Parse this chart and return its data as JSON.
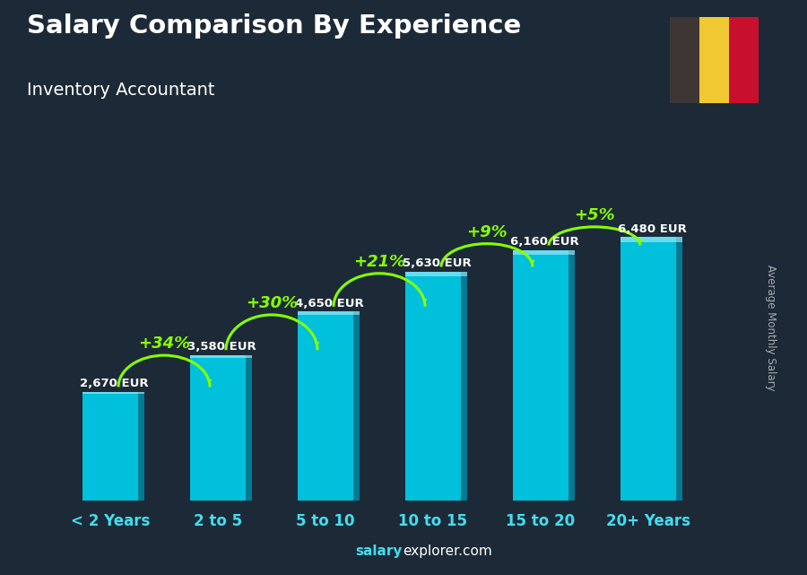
{
  "categories": [
    "< 2 Years",
    "2 to 5",
    "5 to 10",
    "10 to 15",
    "15 to 20",
    "20+ Years"
  ],
  "values": [
    2670,
    3580,
    4650,
    5630,
    6160,
    6480
  ],
  "labels": [
    "2,670 EUR",
    "3,580 EUR",
    "4,650 EUR",
    "5,630 EUR",
    "6,160 EUR",
    "6,480 EUR"
  ],
  "pct_changes": [
    "+34%",
    "+30%",
    "+21%",
    "+9%",
    "+5%"
  ],
  "bar_color_face": "#00C0DC",
  "bar_color_right": "#007A92",
  "bar_color_top": "#80E8FF",
  "title": "Salary Comparison By Experience",
  "subtitle": "Inventory Accountant",
  "ylabel": "Average Monthly Salary",
  "watermark_bold": "salary",
  "watermark_regular": "explorer.com",
  "title_color": "#FFFFFF",
  "label_color": "#FFFFFF",
  "pct_color": "#88FF00",
  "xtick_color": "#44DDEE",
  "bg_color": "#1C2A38",
  "flag_colors": [
    "#3D3635",
    "#F0C832",
    "#C8102E"
  ],
  "ylim_max": 8500,
  "bar_width": 0.52,
  "arc_color": "#88FF00"
}
